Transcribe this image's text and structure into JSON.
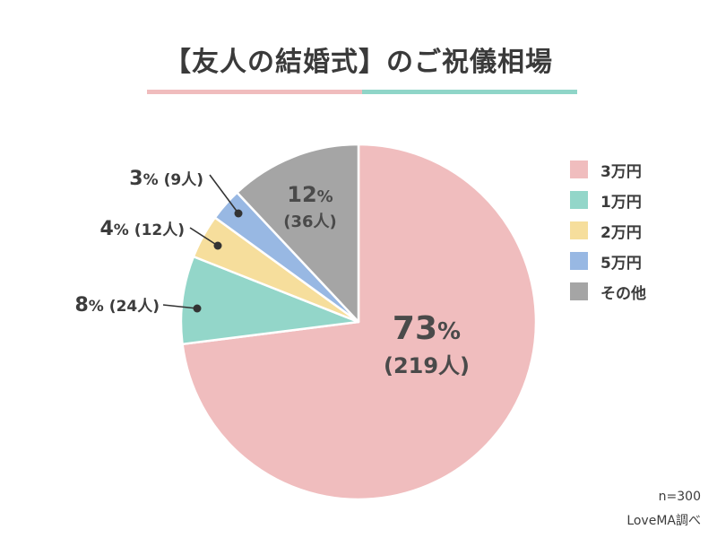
{
  "title": "【友人の結婚式】のご祝儀相場",
  "colors": {
    "title_bar_left": "#f0bcbd",
    "title_bar_right": "#8fd5c8",
    "label_text": "#3c3c3c",
    "inner_text": "#4a4a4a"
  },
  "chart_data": {
    "type": "pie",
    "title": "【友人の結婚式】のご祝儀相場",
    "start": "12 o'clock",
    "direction": "clockwise",
    "legend_position": "right",
    "slices": [
      {
        "name": "3万円",
        "value": 73,
        "count": 219,
        "pct_label": "73",
        "count_label": "(219人)",
        "color": "#f0bdbe",
        "label_placement": "inside-large"
      },
      {
        "name": "1万円",
        "value": 8,
        "count": 24,
        "pct_label": "8",
        "count_label": "(24人)",
        "color": "#93d6c9",
        "label_placement": "outside"
      },
      {
        "name": "2万円",
        "value": 4,
        "count": 12,
        "pct_label": "4",
        "count_label": "(12人)",
        "color": "#f6de9c",
        "label_placement": "outside"
      },
      {
        "name": "5万円",
        "value": 3,
        "count": 9,
        "pct_label": "3",
        "count_label": "(9人)",
        "color": "#98b8e3",
        "label_placement": "outside"
      },
      {
        "name": "その他",
        "value": 12,
        "count": 36,
        "pct_label": "12",
        "count_label": "(36人)",
        "color": "#a5a5a5",
        "label_placement": "inside"
      }
    ],
    "legend_order": [
      "3万円",
      "1万円",
      "2万円",
      "5万円",
      "その他"
    ]
  },
  "footer": {
    "sample": "n=300",
    "source": "LoveMA調べ"
  }
}
